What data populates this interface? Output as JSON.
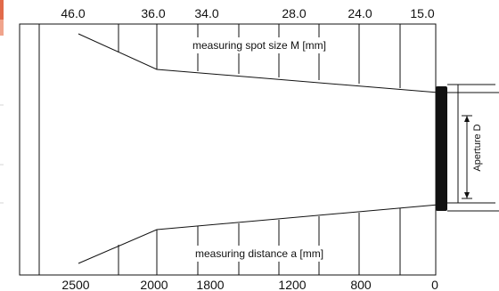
{
  "diagram": {
    "top_scale": {
      "label": "measuring spot size M [mm]",
      "ticks": [
        "46.0",
        "36.0",
        "34.0",
        "28.0",
        "24.0",
        "15.0"
      ]
    },
    "bottom_scale": {
      "label": "measuring distance a [mm]",
      "ticks": [
        "2500",
        "2000",
        "1800",
        "1200",
        "800",
        "0"
      ]
    },
    "aperture_label": "Aperture D",
    "colors": {
      "accent_bar": "#e26a4a",
      "line": "#111111",
      "lens": "#111111",
      "sidebar_divider": "#d6d6d6"
    }
  }
}
